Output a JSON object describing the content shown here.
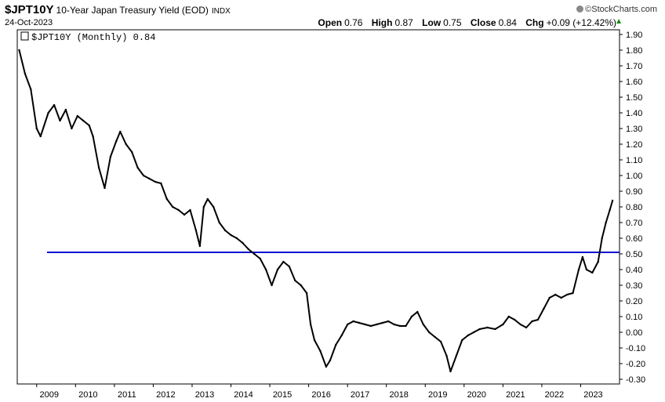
{
  "header": {
    "symbol": "$JPT10Y",
    "title": "10-Year Japan Treasury Yield (EOD)",
    "exchange": "INDX",
    "date": "24-Oct-2023",
    "brand": "©StockCharts.com",
    "open_label": "Open",
    "open_value": "0.76",
    "high_label": "High",
    "high_value": "0.87",
    "low_label": "Low",
    "low_value": "0.75",
    "close_label": "Close",
    "close_value": "0.84",
    "chg_label": "Chg",
    "chg_value": "+0.09 (+12.42%)",
    "up_arrow": "▲"
  },
  "chart_data": {
    "type": "line",
    "legend": "$JPT10Y (Monthly) 0.84",
    "legend_icon": "candle-icon",
    "x_tick_labels": [
      "2009",
      "2010",
      "2011",
      "2012",
      "2013",
      "2014",
      "2015",
      "2016",
      "2017",
      "2018",
      "2019",
      "2020",
      "2021",
      "2022",
      "2023"
    ],
    "y_tick_labels": [
      "1.90",
      "1.80",
      "1.70",
      "1.60",
      "1.50",
      "1.40",
      "1.30",
      "1.20",
      "1.10",
      "1.00",
      "0.90",
      "0.80",
      "0.70",
      "0.60",
      "0.50",
      "0.40",
      "0.30",
      "0.20",
      "0.10",
      "0.00",
      "-0.10",
      "-0.20",
      "-0.30"
    ],
    "xlim": [
      2008.5,
      2024.0
    ],
    "ylim": [
      -0.33,
      1.93
    ],
    "reference_line": {
      "y": 0.51,
      "color": "#1010d0"
    },
    "series": [
      {
        "color": "#000000",
        "values": [
          [
            2008.55,
            1.8
          ],
          [
            2008.7,
            1.65
          ],
          [
            2008.85,
            1.55
          ],
          [
            2009.0,
            1.3
          ],
          [
            2009.1,
            1.25
          ],
          [
            2009.3,
            1.4
          ],
          [
            2009.45,
            1.45
          ],
          [
            2009.6,
            1.35
          ],
          [
            2009.75,
            1.42
          ],
          [
            2009.9,
            1.3
          ],
          [
            2010.05,
            1.38
          ],
          [
            2010.2,
            1.35
          ],
          [
            2010.35,
            1.32
          ],
          [
            2010.45,
            1.25
          ],
          [
            2010.6,
            1.05
          ],
          [
            2010.75,
            0.92
          ],
          [
            2010.9,
            1.12
          ],
          [
            2011.05,
            1.22
          ],
          [
            2011.15,
            1.28
          ],
          [
            2011.3,
            1.2
          ],
          [
            2011.45,
            1.15
          ],
          [
            2011.6,
            1.05
          ],
          [
            2011.75,
            1.0
          ],
          [
            2011.9,
            0.98
          ],
          [
            2012.05,
            0.96
          ],
          [
            2012.2,
            0.95
          ],
          [
            2012.35,
            0.85
          ],
          [
            2012.5,
            0.8
          ],
          [
            2012.65,
            0.78
          ],
          [
            2012.8,
            0.75
          ],
          [
            2012.95,
            0.78
          ],
          [
            2013.1,
            0.65
          ],
          [
            2013.2,
            0.55
          ],
          [
            2013.3,
            0.8
          ],
          [
            2013.4,
            0.85
          ],
          [
            2013.55,
            0.8
          ],
          [
            2013.7,
            0.7
          ],
          [
            2013.85,
            0.65
          ],
          [
            2014.0,
            0.62
          ],
          [
            2014.15,
            0.6
          ],
          [
            2014.3,
            0.57
          ],
          [
            2014.45,
            0.53
          ],
          [
            2014.6,
            0.5
          ],
          [
            2014.75,
            0.47
          ],
          [
            2014.9,
            0.4
          ],
          [
            2015.05,
            0.3
          ],
          [
            2015.2,
            0.4
          ],
          [
            2015.35,
            0.45
          ],
          [
            2015.5,
            0.42
          ],
          [
            2015.65,
            0.33
          ],
          [
            2015.8,
            0.3
          ],
          [
            2015.95,
            0.25
          ],
          [
            2016.05,
            0.05
          ],
          [
            2016.15,
            -0.05
          ],
          [
            2016.3,
            -0.12
          ],
          [
            2016.45,
            -0.22
          ],
          [
            2016.55,
            -0.18
          ],
          [
            2016.7,
            -0.08
          ],
          [
            2016.85,
            -0.02
          ],
          [
            2017.0,
            0.05
          ],
          [
            2017.15,
            0.07
          ],
          [
            2017.3,
            0.06
          ],
          [
            2017.45,
            0.05
          ],
          [
            2017.6,
            0.04
          ],
          [
            2017.75,
            0.05
          ],
          [
            2017.9,
            0.06
          ],
          [
            2018.05,
            0.07
          ],
          [
            2018.2,
            0.05
          ],
          [
            2018.35,
            0.04
          ],
          [
            2018.5,
            0.04
          ],
          [
            2018.65,
            0.1
          ],
          [
            2018.8,
            0.13
          ],
          [
            2018.95,
            0.05
          ],
          [
            2019.1,
            0.0
          ],
          [
            2019.25,
            -0.03
          ],
          [
            2019.4,
            -0.06
          ],
          [
            2019.55,
            -0.15
          ],
          [
            2019.65,
            -0.25
          ],
          [
            2019.8,
            -0.15
          ],
          [
            2019.95,
            -0.05
          ],
          [
            2020.1,
            -0.02
          ],
          [
            2020.25,
            0.0
          ],
          [
            2020.4,
            0.02
          ],
          [
            2020.6,
            0.03
          ],
          [
            2020.8,
            0.02
          ],
          [
            2021.0,
            0.05
          ],
          [
            2021.15,
            0.1
          ],
          [
            2021.3,
            0.08
          ],
          [
            2021.45,
            0.05
          ],
          [
            2021.6,
            0.03
          ],
          [
            2021.75,
            0.07
          ],
          [
            2021.9,
            0.08
          ],
          [
            2022.05,
            0.15
          ],
          [
            2022.2,
            0.22
          ],
          [
            2022.35,
            0.24
          ],
          [
            2022.5,
            0.22
          ],
          [
            2022.65,
            0.24
          ],
          [
            2022.8,
            0.25
          ],
          [
            2022.95,
            0.4
          ],
          [
            2023.05,
            0.48
          ],
          [
            2023.15,
            0.4
          ],
          [
            2023.3,
            0.38
          ],
          [
            2023.45,
            0.45
          ],
          [
            2023.55,
            0.6
          ],
          [
            2023.65,
            0.7
          ],
          [
            2023.75,
            0.78
          ],
          [
            2023.82,
            0.84
          ]
        ]
      }
    ]
  }
}
